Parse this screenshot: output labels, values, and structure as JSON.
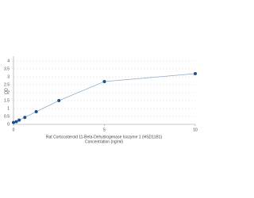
{
  "chart_data": {
    "type": "scatter",
    "x_label": "Rat Corticosteroid 11-Beta-Dehydrogenase Isozyme 1 (HSD11B1)",
    "x_label_2": "Concentration (ng/ml)",
    "y_label": "OD",
    "x": [
      0,
      0.156,
      0.313,
      0.625,
      1.25,
      2.5,
      5,
      10
    ],
    "values": [
      0.12,
      0.17,
      0.27,
      0.44,
      0.8,
      1.5,
      2.7,
      3.2
    ],
    "color": "#1f4e8c",
    "line_color": "#8fa9c8",
    "xlim": [
      0,
      10
    ],
    "xticks": [
      0,
      5,
      10
    ],
    "ylim": [
      0,
      4.3
    ],
    "yticks": [
      0,
      0.5,
      1,
      1.5,
      2,
      2.5,
      3,
      3.5,
      4
    ],
    "grid": true
  }
}
